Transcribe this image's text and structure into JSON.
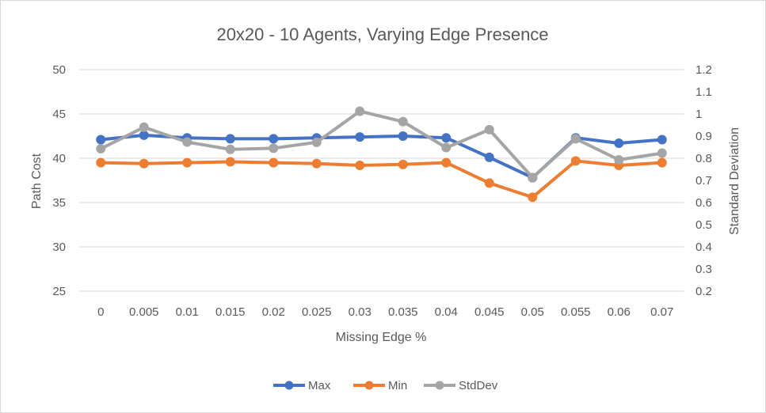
{
  "chart_data": {
    "type": "line",
    "title": "20x20 - 10 Agents, Varying Edge Presence",
    "xlabel": "Missing Edge %",
    "ylabel": "Path Cost",
    "y2label": "Standard Deviation",
    "categories": [
      "0",
      "0.005",
      "0.01",
      "0.015",
      "0.02",
      "0.025",
      "0.03",
      "0.035",
      "0.04",
      "0.045",
      "0.05",
      "0.055",
      "0.06",
      "0.07"
    ],
    "ylim": [
      25,
      50
    ],
    "yticks": [
      "25",
      "30",
      "35",
      "40",
      "45",
      "50"
    ],
    "y2lim": [
      0.2,
      1.2
    ],
    "y2ticks": [
      "0.2",
      "0.3",
      "0.4",
      "0.5",
      "0.6",
      "0.7",
      "0.8",
      "0.9",
      "1",
      "1.1",
      "1.2"
    ],
    "grid": "horizontal",
    "legend_position": "bottom",
    "series": [
      {
        "name": "Max",
        "axis": "left",
        "color": "#4472c4",
        "values": [
          42.1,
          42.6,
          42.3,
          42.2,
          42.2,
          42.3,
          42.4,
          42.5,
          42.3,
          40.1,
          37.8,
          42.3,
          41.7,
          42.1
        ]
      },
      {
        "name": "Min",
        "axis": "left",
        "color": "#ed7d31",
        "values": [
          39.5,
          39.4,
          39.5,
          39.6,
          39.5,
          39.4,
          39.2,
          39.3,
          39.5,
          37.2,
          35.6,
          39.7,
          39.2,
          39.5
        ]
      },
      {
        "name": "StdDev",
        "axis": "right",
        "color": "#a5a5a5",
        "values": [
          0.843,
          0.94,
          0.873,
          0.84,
          0.845,
          0.872,
          1.012,
          0.965,
          0.848,
          0.929,
          0.713,
          0.888,
          0.793,
          0.823
        ]
      }
    ]
  }
}
